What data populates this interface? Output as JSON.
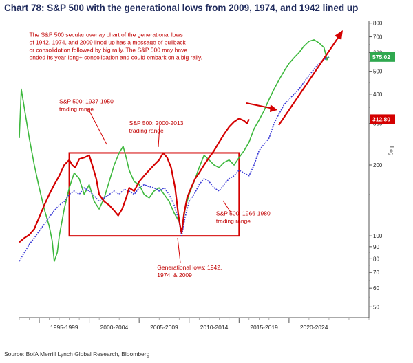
{
  "title": "Chart 78: S&P 500 with the generational lows from 2009, 1974, and 1942 lined up",
  "source": "Source: BofA Merrill Lynch Global Research, Bloomberg",
  "chart_data": {
    "type": "line",
    "title": "Chart 78: S&P 500 with the generational lows from 2009, 1974, and 1942 lined up",
    "ylabel": "Log",
    "yscale": "log",
    "ylim": [
      45,
      820
    ],
    "xlim": [
      1993,
      2028
    ],
    "y_ticks": [
      50,
      60,
      70,
      80,
      90,
      100,
      200,
      300,
      400,
      500,
      600,
      700,
      800
    ],
    "x_tick_labels": [
      "1995-1999",
      "2000-2004",
      "2005-2009",
      "2010-2014",
      "2015-2019",
      "2020-2024"
    ],
    "x_tick_ranges": [
      [
        1995,
        2000
      ],
      [
        2000,
        2005
      ],
      [
        2005,
        2010
      ],
      [
        2010,
        2015
      ],
      [
        2015,
        2020
      ],
      [
        2020,
        2025
      ]
    ],
    "grid": false,
    "series": [
      {
        "color": "#d40000",
        "last_value_label": "312.80",
        "points": [
          [
            1993.0,
            94
          ],
          [
            1993.5,
            98
          ],
          [
            1994.0,
            101
          ],
          [
            1994.5,
            107
          ],
          [
            1995.0,
            120
          ],
          [
            1995.5,
            135
          ],
          [
            1996.0,
            150
          ],
          [
            1996.5,
            165
          ],
          [
            1997.0,
            180
          ],
          [
            1997.5,
            200
          ],
          [
            1998.0,
            210
          ],
          [
            1998.3,
            200
          ],
          [
            1998.6,
            195
          ],
          [
            1999.0,
            212
          ],
          [
            1999.5,
            215
          ],
          [
            2000.0,
            220
          ],
          [
            2000.3,
            200
          ],
          [
            2000.7,
            175
          ],
          [
            2001.0,
            150
          ],
          [
            2001.5,
            140
          ],
          [
            2002.0,
            135
          ],
          [
            2002.5,
            128
          ],
          [
            2002.9,
            122
          ],
          [
            2003.3,
            130
          ],
          [
            2003.7,
            145
          ],
          [
            2004.0,
            160
          ],
          [
            2004.5,
            155
          ],
          [
            2005.0,
            170
          ],
          [
            2005.5,
            180
          ],
          [
            2006.0,
            190
          ],
          [
            2006.5,
            200
          ],
          [
            2007.0,
            210
          ],
          [
            2007.4,
            225
          ],
          [
            2007.8,
            215
          ],
          [
            2008.2,
            195
          ],
          [
            2008.6,
            160
          ],
          [
            2008.9,
            125
          ],
          [
            2009.1,
            110
          ],
          [
            2009.25,
            103
          ],
          [
            2009.5,
            125
          ],
          [
            2009.8,
            145
          ],
          [
            2010.2,
            160
          ],
          [
            2010.6,
            175
          ],
          [
            2011.0,
            185
          ],
          [
            2011.5,
            200
          ],
          [
            2012.0,
            215
          ],
          [
            2012.5,
            230
          ],
          [
            2013.0,
            250
          ],
          [
            2013.5,
            270
          ],
          [
            2014.0,
            290
          ],
          [
            2014.5,
            305
          ],
          [
            2015.0,
            315
          ],
          [
            2015.5,
            308
          ],
          [
            2015.8,
            300
          ],
          [
            2016.0,
            312.8
          ]
        ]
      },
      {
        "color": "#3db83d",
        "points": [
          [
            1993.0,
            260
          ],
          [
            1993.2,
            420
          ],
          [
            1993.6,
            330
          ],
          [
            1994.0,
            260
          ],
          [
            1994.5,
            200
          ],
          [
            1995.0,
            160
          ],
          [
            1995.5,
            130
          ],
          [
            1996.0,
            110
          ],
          [
            1996.3,
            95
          ],
          [
            1996.5,
            78
          ],
          [
            1996.8,
            85
          ],
          [
            1997.0,
            100
          ],
          [
            1997.5,
            130
          ],
          [
            1998.0,
            160
          ],
          [
            1998.5,
            185
          ],
          [
            1999.0,
            175
          ],
          [
            1999.5,
            150
          ],
          [
            2000.0,
            165
          ],
          [
            2000.5,
            140
          ],
          [
            2001.0,
            130
          ],
          [
            2001.5,
            145
          ],
          [
            2002.0,
            170
          ],
          [
            2002.5,
            200
          ],
          [
            2003.0,
            225
          ],
          [
            2003.4,
            240
          ],
          [
            2003.7,
            215
          ],
          [
            2004.0,
            190
          ],
          [
            2004.5,
            170
          ],
          [
            2005.0,
            165
          ],
          [
            2005.5,
            150
          ],
          [
            2006.0,
            145
          ],
          [
            2006.5,
            155
          ],
          [
            2007.0,
            160
          ],
          [
            2007.5,
            150
          ],
          [
            2008.0,
            140
          ],
          [
            2008.5,
            125
          ],
          [
            2009.0,
            115
          ],
          [
            2009.25,
            104
          ],
          [
            2009.6,
            130
          ],
          [
            2010.0,
            150
          ],
          [
            2010.5,
            170
          ],
          [
            2011.0,
            195
          ],
          [
            2011.5,
            220
          ],
          [
            2012.0,
            210
          ],
          [
            2012.5,
            200
          ],
          [
            2013.0,
            195
          ],
          [
            2013.5,
            205
          ],
          [
            2014.0,
            210
          ],
          [
            2014.5,
            200
          ],
          [
            2015.0,
            215
          ],
          [
            2015.5,
            230
          ],
          [
            2016.0,
            250
          ],
          [
            2016.5,
            285
          ],
          [
            2017.0,
            310
          ],
          [
            2017.5,
            340
          ],
          [
            2018.0,
            380
          ],
          [
            2018.5,
            420
          ],
          [
            2019.0,
            460
          ],
          [
            2019.5,
            500
          ],
          [
            2020.0,
            540
          ],
          [
            2020.5,
            570
          ],
          [
            2021.0,
            600
          ],
          [
            2021.5,
            640
          ],
          [
            2022.0,
            670
          ],
          [
            2022.5,
            680
          ],
          [
            2023.0,
            660
          ],
          [
            2023.5,
            630
          ],
          [
            2023.8,
            560
          ],
          [
            2024.0,
            575.02
          ]
        ]
      },
      {
        "color": "#3b3bd6",
        "points": [
          [
            1993.0,
            78
          ],
          [
            1993.5,
            85
          ],
          [
            1994.0,
            92
          ],
          [
            1994.5,
            98
          ],
          [
            1995.0,
            105
          ],
          [
            1995.5,
            112
          ],
          [
            1996.0,
            120
          ],
          [
            1996.5,
            128
          ],
          [
            1997.0,
            135
          ],
          [
            1997.5,
            140
          ],
          [
            1998.0,
            150
          ],
          [
            1998.5,
            155
          ],
          [
            1999.0,
            150
          ],
          [
            1999.5,
            160
          ],
          [
            2000.0,
            155
          ],
          [
            2000.5,
            148
          ],
          [
            2001.0,
            140
          ],
          [
            2001.5,
            145
          ],
          [
            2002.0,
            150
          ],
          [
            2002.5,
            155
          ],
          [
            2003.0,
            150
          ],
          [
            2003.5,
            158
          ],
          [
            2004.0,
            155
          ],
          [
            2004.5,
            150
          ],
          [
            2005.0,
            160
          ],
          [
            2005.5,
            165
          ],
          [
            2006.0,
            162
          ],
          [
            2006.5,
            160
          ],
          [
            2007.0,
            155
          ],
          [
            2007.5,
            160
          ],
          [
            2008.0,
            150
          ],
          [
            2008.5,
            135
          ],
          [
            2009.0,
            115
          ],
          [
            2009.25,
            100
          ],
          [
            2009.6,
            120
          ],
          [
            2010.0,
            140
          ],
          [
            2010.5,
            150
          ],
          [
            2011.0,
            165
          ],
          [
            2011.5,
            175
          ],
          [
            2012.0,
            170
          ],
          [
            2012.5,
            160
          ],
          [
            2013.0,
            155
          ],
          [
            2013.5,
            165
          ],
          [
            2014.0,
            175
          ],
          [
            2014.5,
            180
          ],
          [
            2015.0,
            190
          ],
          [
            2015.5,
            185
          ],
          [
            2016.0,
            180
          ],
          [
            2016.5,
            200
          ],
          [
            2017.0,
            230
          ],
          [
            2017.5,
            245
          ],
          [
            2018.0,
            260
          ],
          [
            2018.5,
            300
          ],
          [
            2019.0,
            330
          ],
          [
            2019.5,
            360
          ],
          [
            2020.0,
            380
          ],
          [
            2020.5,
            400
          ],
          [
            2021.0,
            420
          ],
          [
            2021.5,
            450
          ],
          [
            2022.0,
            480
          ],
          [
            2022.5,
            510
          ],
          [
            2023.0,
            540
          ],
          [
            2023.5,
            560
          ],
          [
            2024.0,
            575
          ]
        ]
      }
    ],
    "box": {
      "x0": 1998.0,
      "x1": 2015.0,
      "y0": 100,
      "y1": 225,
      "color": "#d40000"
    },
    "annotations": [
      {
        "name": "main-note",
        "x": 1994.0,
        "y": 700,
        "lines": [
          "The S&P 500 secular overlay chart of the generational lows",
          "of 1942, 1974, and 2009 lined up has a message of pullback",
          "or consolidation followed by big rally. The S&P 500 may have",
          "ended its year-long+ consolidation and could embark on a big rally."
        ]
      },
      {
        "name": "range-1937-1950-note",
        "x": 1997.0,
        "y": 365,
        "lines": [
          "S&P 500: 1937-1950",
          "trading range"
        ]
      },
      {
        "name": "range-2000-2013-note",
        "x": 2004.0,
        "y": 295,
        "lines": [
          "S&P 500: 2000-2013",
          "trading range"
        ]
      },
      {
        "name": "range-1966-1980-note",
        "x": 2012.7,
        "y": 122,
        "lines": [
          "S&P 500: 1966-1980",
          "trading range"
        ]
      },
      {
        "name": "generational-lows-note",
        "x": 2006.8,
        "y": 72,
        "lines": [
          "Generational lows: 1942,",
          "1974, & 2009"
        ]
      }
    ],
    "value_labels": [
      {
        "name": "green-last-value-badge",
        "text": "575.02",
        "y": 575,
        "color": "#2fa84f"
      },
      {
        "name": "red-last-value-badge",
        "text": "312.80",
        "y": 312.8,
        "color": "#d40000"
      }
    ]
  }
}
